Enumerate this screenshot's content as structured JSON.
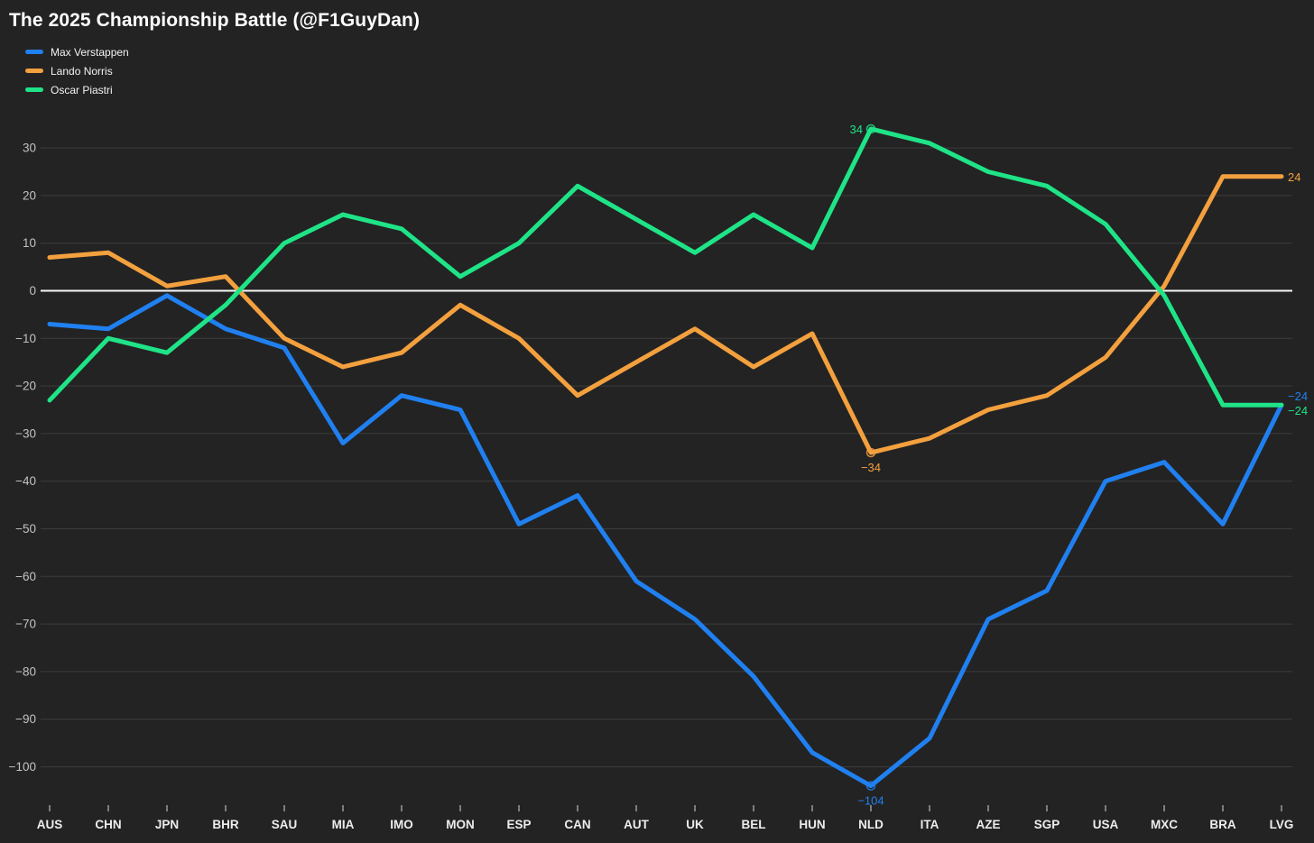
{
  "title": "The 2025 Championship Battle (@F1GuyDan)",
  "colors": {
    "background": "#232323",
    "grid": "#3c3c3c",
    "zero_line": "#f7f7f7",
    "y_tick_label": "#c2c2c2",
    "x_tick_label": "#ededed",
    "axis_tick": "#9a9a9a",
    "title": "#ffffff",
    "max_verstappen": "#2080f0",
    "lando_norris": "#f3a03e",
    "oscar_piastri": "#1fe487"
  },
  "chart_data": {
    "type": "line",
    "title": "The 2025 Championship Battle (@F1GuyDan)",
    "categories": [
      "AUS",
      "CHN",
      "JPN",
      "BHR",
      "SAU",
      "MIA",
      "IMO",
      "MON",
      "ESP",
      "CAN",
      "AUT",
      "UK",
      "BEL",
      "HUN",
      "NLD",
      "ITA",
      "AZE",
      "SGP",
      "USA",
      "MXC",
      "BRA",
      "LVG"
    ],
    "series": [
      {
        "name": "Max Verstappen",
        "color": "#2080f0",
        "values": [
          -7,
          -8,
          -1,
          -8,
          -12,
          -32,
          -22,
          -25,
          -49,
          -43,
          -61,
          -69,
          -81,
          -97,
          -104,
          -94,
          -69,
          -63,
          -40,
          -36,
          -49,
          -24
        ]
      },
      {
        "name": "Lando Norris",
        "color": "#f3a03e",
        "values": [
          7,
          8,
          1,
          3,
          -10,
          -16,
          -13,
          -3,
          -10,
          -22,
          -15,
          -8,
          -16,
          -9,
          -34,
          -31,
          -25,
          -22,
          -14,
          1,
          24,
          24
        ]
      },
      {
        "name": "Oscar Piastri",
        "color": "#1fe487",
        "values": [
          -23,
          -10,
          -13,
          -3,
          10,
          16,
          13,
          3,
          10,
          22,
          15,
          8,
          16,
          9,
          34,
          31,
          25,
          22,
          14,
          -1,
          -24,
          -24
        ]
      }
    ],
    "y_ticks": [
      30,
      20,
      10,
      0,
      -10,
      -20,
      -30,
      -40,
      -50,
      -60,
      -70,
      -80,
      -90,
      -100
    ],
    "ylim": [
      -110,
      38
    ],
    "xlabel": "",
    "ylabel": "",
    "grid": true,
    "zero_line": true,
    "legend_position": "top-left",
    "annotations": [
      {
        "series": 2,
        "index": 14,
        "label": "34",
        "placement": "left",
        "marker": true
      },
      {
        "series": 1,
        "index": 14,
        "label": "−34",
        "placement": "below",
        "marker": true
      },
      {
        "series": 0,
        "index": 14,
        "label": "−104",
        "placement": "below",
        "marker": true
      },
      {
        "series": 1,
        "index": 21,
        "label": "24",
        "placement": "right",
        "marker": false
      },
      {
        "series": 0,
        "index": 21,
        "label": "−24",
        "placement": "right_above",
        "marker": false
      },
      {
        "series": 2,
        "index": 21,
        "label": "−24",
        "placement": "right_below",
        "marker": false
      }
    ]
  }
}
